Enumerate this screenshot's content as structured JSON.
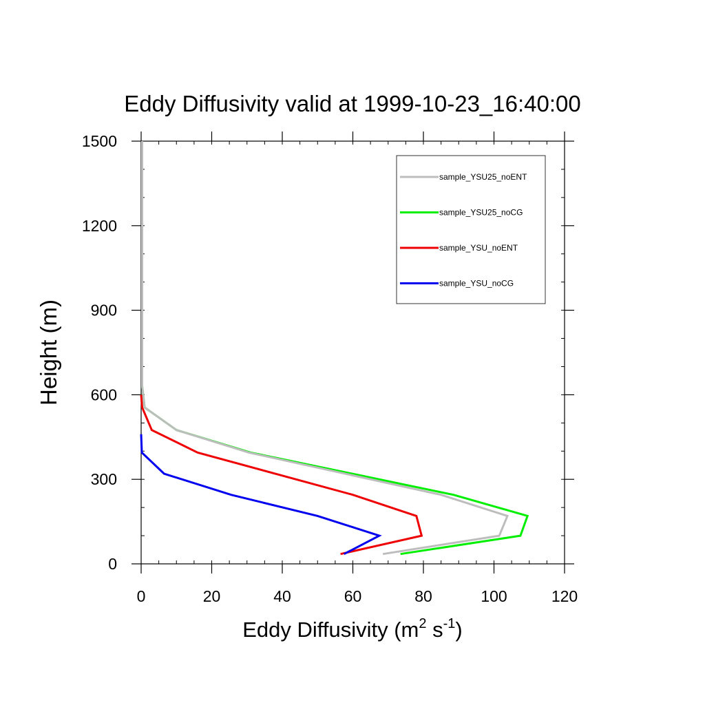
{
  "chart_data": {
    "type": "line",
    "title": "Eddy Diffusivity valid at 1999-10-23_16:40:00",
    "xlabel": "Eddy Diffusivity (m",
    "xlabel_sup1": "2",
    "xlabel_mid": " s",
    "xlabel_sup2": "-1",
    "xlabel_end": ")",
    "ylabel": "Height (m)",
    "xlim": [
      0,
      120
    ],
    "ylim": [
      0,
      1500
    ],
    "x_ticks": [
      0,
      20,
      40,
      60,
      80,
      100,
      120
    ],
    "y_ticks": [
      0,
      300,
      600,
      900,
      1200,
      1500
    ],
    "legend_position": "top-right",
    "series": [
      {
        "name": "sample_YSU25_noENT",
        "color": "#bdbdbd",
        "x": [
          68.5,
          101.5,
          103.8,
          85.0,
          30.5,
          10.0,
          1.0,
          0.3,
          0.3,
          0.3,
          0.3
        ],
        "y": [
          35,
          100,
          170,
          245,
          395,
          475,
          555,
          630,
          900,
          1200,
          1500
        ]
      },
      {
        "name": "sample_YSU25_noCG",
        "color": "#00ee00",
        "x": [
          73.5,
          107.5,
          109.5,
          88.5,
          31.0,
          10.0,
          1.0,
          0.3,
          0.3,
          0.3,
          0.3
        ],
        "y": [
          35,
          100,
          170,
          245,
          395,
          475,
          555,
          630,
          900,
          1200,
          1500
        ]
      },
      {
        "name": "sample_YSU_noENT",
        "color": "#ee0000",
        "x": [
          56.5,
          79.5,
          78.0,
          60.0,
          16.0,
          3.0,
          0.3,
          0.0
        ],
        "y": [
          35,
          100,
          170,
          245,
          395,
          475,
          555,
          600
        ]
      },
      {
        "name": "sample_YSU_noCG",
        "color": "#0000ee",
        "x": [
          57.5,
          67.5,
          50.0,
          25.5,
          6.5,
          0.2,
          0.0
        ],
        "y": [
          35,
          100,
          170,
          245,
          320,
          395,
          460
        ]
      }
    ]
  }
}
